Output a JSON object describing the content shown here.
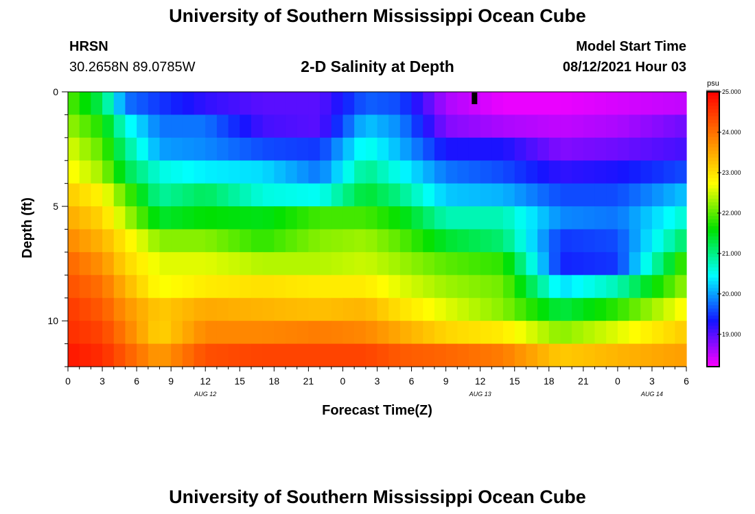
{
  "header": {
    "title_top": "University of Southern Mississippi Ocean Cube",
    "title_bottom": "University of Southern Mississippi Ocean Cube",
    "station": "HRSN",
    "coords": "30.2658N  89.0785W",
    "plot_title": "2-D Salinity at Depth",
    "model_start_label": "Model Start Time",
    "model_start_value": "08/12/2021 Hour 03"
  },
  "colors": {
    "background": "#ffffff",
    "axis": "#000000",
    "scale": [
      "#ff00ff",
      "#1414ff",
      "#00ffff",
      "#00e000",
      "#ffff00",
      "#ff8000",
      "#ff0000"
    ]
  },
  "chart_data": {
    "type": "heatmap",
    "title": "2-D Salinity at Depth",
    "xlabel": "Forecast Time(Z)",
    "ylabel": "Depth (ft)",
    "x_hours": [
      0,
      3,
      6,
      9,
      12,
      15,
      18,
      21,
      24,
      27,
      30,
      33,
      36,
      39,
      42,
      45,
      48,
      51,
      54
    ],
    "x_tick_labels": [
      "0",
      "3",
      "6",
      "9",
      "12",
      "15",
      "18",
      "21",
      "0",
      "3",
      "6",
      "9",
      "12",
      "15",
      "18",
      "21",
      "0",
      "3",
      "6"
    ],
    "date_labels": [
      {
        "hour": 12,
        "text": "AUG 12"
      },
      {
        "hour": 36,
        "text": "AUG 13"
      },
      {
        "hour": 51,
        "text": "AUG 14"
      }
    ],
    "xlim": [
      0,
      54
    ],
    "y_ticks": [
      0,
      5,
      10
    ],
    "ylim": [
      0,
      12
    ],
    "depth_layers": [
      0.5,
      1.5,
      2.5,
      3.5,
      4.5,
      5.5,
      6.5,
      7.5,
      8.5,
      9.5,
      10.5,
      11.5
    ],
    "time_nodes": [
      0,
      3,
      5,
      8,
      12,
      17,
      22,
      26,
      29,
      33,
      38,
      43,
      48,
      54
    ],
    "salinity_psu": [
      [
        22.0,
        21.2,
        19.8,
        19.5,
        19.2,
        19.0,
        19.0,
        19.7,
        19.6,
        18.6,
        18.3,
        18.3,
        18.4,
        18.5
      ],
      [
        22.3,
        21.7,
        20.6,
        19.8,
        19.8,
        19.1,
        19.0,
        20.2,
        19.9,
        18.8,
        18.6,
        18.5,
        18.6,
        18.9
      ],
      [
        22.6,
        22.0,
        21.0,
        20.0,
        19.9,
        19.6,
        19.5,
        20.6,
        20.1,
        19.3,
        19.3,
        18.8,
        18.9,
        19.1
      ],
      [
        22.8,
        22.3,
        21.3,
        20.6,
        20.4,
        20.3,
        19.8,
        21.0,
        20.5,
        19.8,
        19.6,
        19.2,
        19.3,
        19.6
      ],
      [
        23.2,
        22.8,
        22.0,
        20.9,
        21.2,
        20.6,
        20.5,
        21.4,
        21.0,
        20.2,
        20.1,
        19.6,
        19.6,
        20.2
      ],
      [
        23.5,
        23.1,
        22.4,
        21.4,
        21.6,
        21.5,
        21.9,
        21.9,
        21.6,
        20.8,
        20.8,
        19.9,
        19.8,
        20.7
      ],
      [
        23.8,
        23.4,
        22.9,
        22.2,
        22.2,
        21.8,
        22.2,
        22.3,
        22.0,
        21.4,
        21.1,
        19.5,
        19.6,
        21.2
      ],
      [
        24.1,
        23.7,
        23.1,
        22.6,
        22.6,
        22.4,
        22.4,
        22.5,
        22.3,
        22.0,
        21.8,
        19.4,
        19.5,
        22.0
      ],
      [
        24.3,
        24.0,
        23.4,
        22.7,
        22.9,
        23.0,
        22.9,
        22.9,
        22.6,
        22.3,
        22.1,
        20.3,
        20.8,
        22.3
      ],
      [
        24.5,
        24.2,
        23.7,
        23.2,
        23.5,
        23.4,
        23.3,
        23.4,
        23.0,
        22.6,
        22.2,
        21.3,
        21.8,
        22.8
      ],
      [
        24.6,
        24.4,
        23.9,
        23.1,
        23.8,
        23.8,
        23.9,
        23.8,
        23.5,
        23.1,
        22.9,
        22.2,
        22.6,
        23.2
      ],
      [
        24.8,
        24.6,
        24.2,
        23.6,
        24.3,
        24.4,
        24.4,
        24.4,
        24.2,
        24.1,
        23.9,
        23.2,
        23.4,
        23.6
      ]
    ],
    "time_marker_hour": 35.5,
    "colorbar": {
      "unit": "psu",
      "min": 18.2,
      "max": 25.0,
      "tick_values": [
        19.0,
        20.0,
        21.0,
        22.0,
        23.0,
        24.0,
        25.0
      ],
      "tick_labels": [
        "19.000",
        "20.000",
        "21.000",
        "22.000",
        "23.000",
        "24.000",
        "25.000"
      ]
    }
  }
}
